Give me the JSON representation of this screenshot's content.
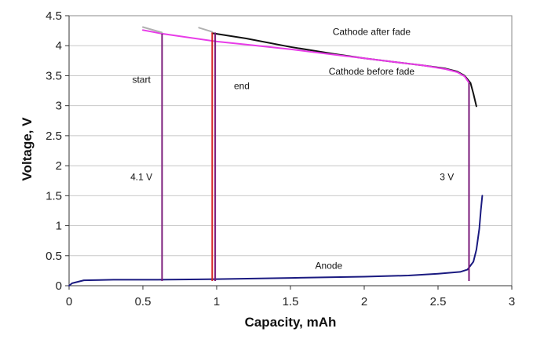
{
  "chart_data": {
    "type": "line",
    "title": "",
    "xlabel": "Capacity, mAh",
    "ylabel": "Voltage, V",
    "xlim": [
      0,
      3
    ],
    "ylim": [
      0,
      4.5
    ],
    "x_ticks": [
      0,
      0.5,
      1,
      1.5,
      2,
      2.5,
      3
    ],
    "x_tick_labels": [
      "0",
      "0.5",
      "1",
      "1.5",
      "2",
      "2.5",
      "3"
    ],
    "y_ticks": [
      0,
      0.5,
      1,
      1.5,
      2,
      2.5,
      3,
      3.5,
      4,
      4.5
    ],
    "y_tick_labels": [
      "0",
      "0.5",
      "1",
      "1.5",
      "2",
      "2.5",
      "3",
      "3.5",
      "4",
      "4.5"
    ],
    "grid": "horizontal",
    "series": [
      {
        "name": "Cathode after fade",
        "color": "#111111",
        "x": [
          0.97,
          1.2,
          1.5,
          1.8,
          2.0,
          2.2,
          2.4,
          2.55,
          2.63,
          2.68,
          2.72,
          2.74,
          2.76
        ],
        "y": [
          4.21,
          4.12,
          3.98,
          3.86,
          3.79,
          3.73,
          3.67,
          3.62,
          3.57,
          3.5,
          3.38,
          3.2,
          2.99
        ]
      },
      {
        "name": "Cathode before fade",
        "color": "#e83ce8",
        "x": [
          0.5,
          0.63,
          0.8,
          1.0,
          1.2,
          1.5,
          1.8,
          2.0,
          2.2,
          2.4,
          2.55,
          2.63,
          2.68,
          2.71
        ],
        "y": [
          4.26,
          4.2,
          4.14,
          4.07,
          4.02,
          3.94,
          3.85,
          3.79,
          3.73,
          3.67,
          3.61,
          3.56,
          3.49,
          3.38
        ]
      },
      {
        "name": "Cathode before fade (grey segment)",
        "color": "#b0b0b0",
        "x": [
          0.5,
          0.63
        ],
        "y": [
          4.31,
          4.22
        ]
      },
      {
        "name": "Cathode after fade (grey segment)",
        "color": "#b0b0b0",
        "x": [
          0.88,
          0.97
        ],
        "y": [
          4.3,
          4.23
        ]
      },
      {
        "name": "Anode",
        "color": "#1a1a80",
        "x": [
          0.0,
          0.02,
          0.1,
          0.3,
          0.6,
          1.0,
          1.5,
          2.0,
          2.3,
          2.5,
          2.65,
          2.7,
          2.74,
          2.76,
          2.78,
          2.79,
          2.8
        ],
        "y": [
          0.0,
          0.04,
          0.09,
          0.1,
          0.1,
          0.11,
          0.13,
          0.15,
          0.17,
          0.2,
          0.23,
          0.27,
          0.4,
          0.6,
          0.95,
          1.25,
          1.5
        ]
      }
    ],
    "markers": [
      {
        "name": "start",
        "x": 0.63,
        "y_top": 4.2,
        "color": "#7a1a7a"
      },
      {
        "name": "end left",
        "x": 0.97,
        "y_top": 4.22,
        "color": "#d42020"
      },
      {
        "name": "end right",
        "x": 0.99,
        "y_top": 4.22,
        "color": "#7a1a7a"
      },
      {
        "name": "3 V",
        "x": 2.71,
        "y_top": 3.38,
        "color": "#7a1a7a"
      }
    ],
    "annotations": [
      {
        "text": "Cathode after fade",
        "x": 2.05,
        "y": 4.18
      },
      {
        "text": "Cathode before fade",
        "x": 2.05,
        "y": 3.52
      },
      {
        "text": "start",
        "x": 0.49,
        "y": 3.38
      },
      {
        "text": "end",
        "x": 1.17,
        "y": 3.28
      },
      {
        "text": "4.1 V",
        "x": 0.49,
        "y": 1.76
      },
      {
        "text": "3 V",
        "x": 2.56,
        "y": 1.76
      },
      {
        "text": "Anode",
        "x": 1.76,
        "y": 0.28
      }
    ]
  }
}
